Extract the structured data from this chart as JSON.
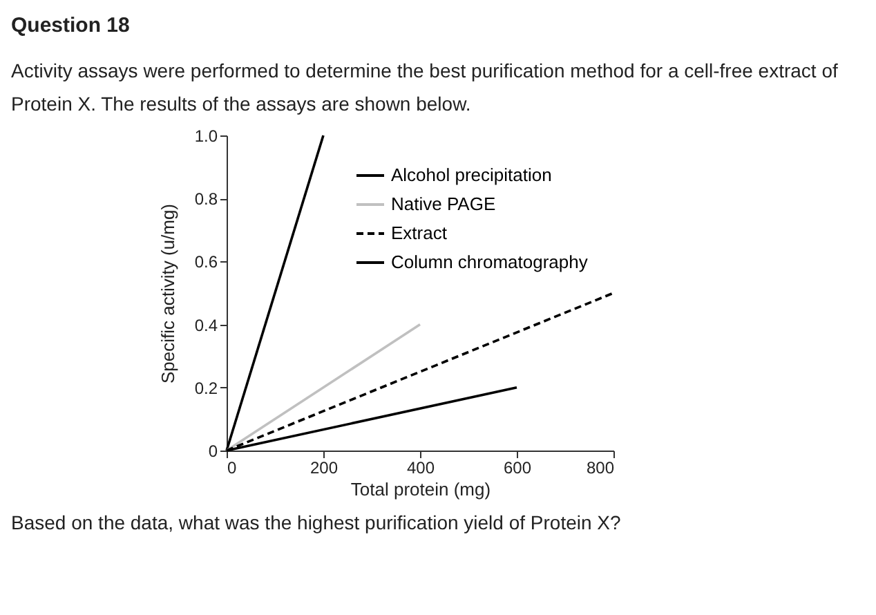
{
  "chart_data": {
    "type": "line",
    "title": "Question 18",
    "subtitle": "Activity assays were performed to determine the best purification method for a cell-free extract of Protein X.  The results of the assays are shown below.",
    "xlabel": "Total protein (mg)",
    "ylabel": "Specific activity (u/mg)",
    "annotations": [
      "Based on the data, what was the highest purification yield of Protein X?"
    ],
    "series": [
      {
        "name": "Alcohol precipitation",
        "color": "#000000",
        "x": [
          0,
          200
        ],
        "values": [
          0,
          1.0
        ],
        "line_style": "solid"
      },
      {
        "name": "Native PAGE",
        "color": "#c0c0c0",
        "x": [
          0,
          400
        ],
        "values": [
          0,
          0.4
        ],
        "line_style": "solid"
      },
      {
        "name": "Extract",
        "color": "#000000",
        "x": [
          0,
          800
        ],
        "values": [
          0,
          0.5
        ],
        "line_style": "dashed"
      },
      {
        "name": "Column chromatography",
        "color": "#000000",
        "x": [
          0,
          600
        ],
        "values": [
          0,
          0.2
        ],
        "line_style": "solid"
      }
    ],
    "xlim": [
      0,
      800
    ],
    "xticks": [
      0,
      200,
      400,
      600,
      800
    ],
    "ylim": [
      0,
      1.0
    ],
    "yticks": [
      {
        "value": 0,
        "label": "0"
      },
      {
        "value": 0.2,
        "label": "0.2"
      },
      {
        "value": 0.4,
        "label": "0.4"
      },
      {
        "value": 0.6,
        "label": "0.6"
      },
      {
        "value": 0.8,
        "label": "0.8"
      },
      {
        "value": 1.0,
        "label": "1.0"
      }
    ],
    "grid": false,
    "legend": "top right",
    "marker": "none"
  }
}
